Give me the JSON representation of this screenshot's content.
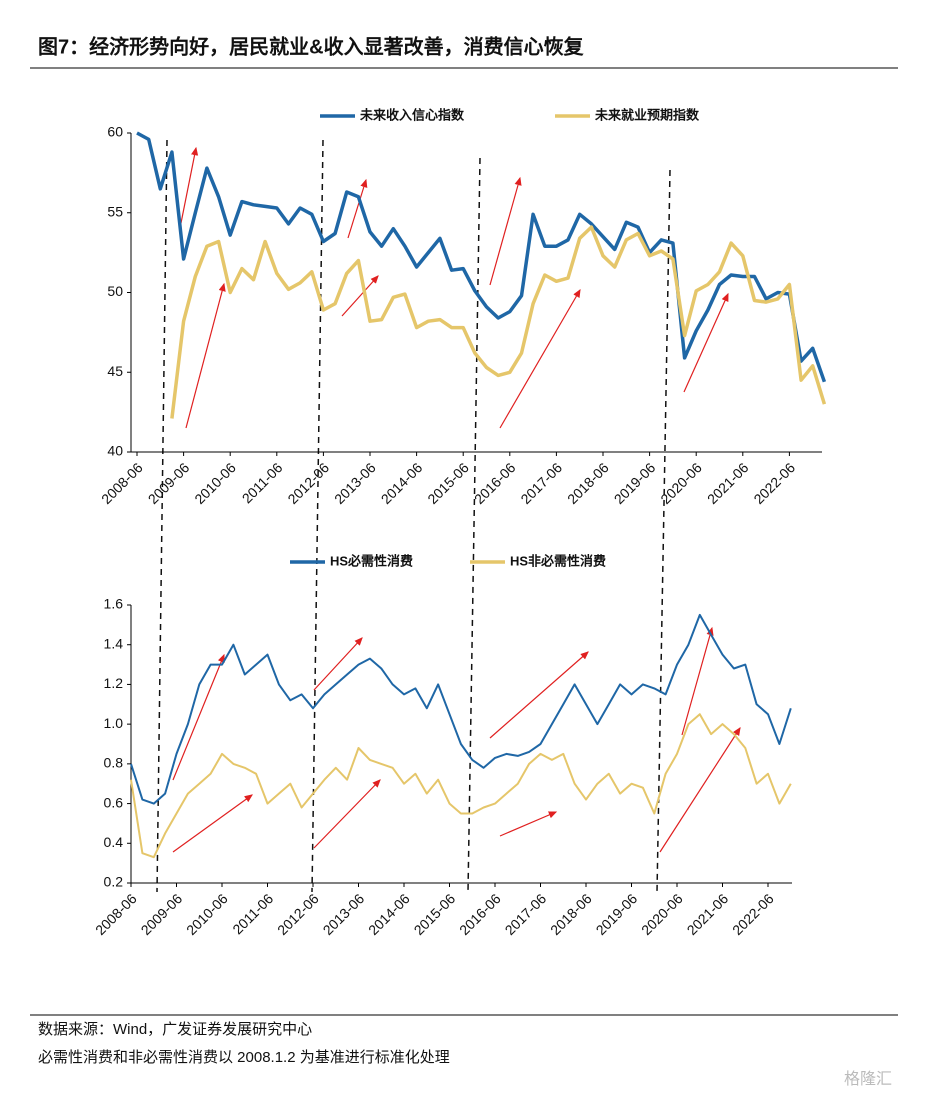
{
  "title": "图7：经济形势向好，居民就业&收入显著改善，消费信心恢复",
  "chart_data": [
    {
      "type": "line",
      "legend": "top",
      "categories": [
        "2008-06",
        null,
        null,
        null,
        "2009-06",
        null,
        null,
        null,
        "2010-06",
        null,
        null,
        null,
        "2011-06",
        null,
        null,
        null,
        "2012-06",
        null,
        null,
        null,
        "2013-06",
        null,
        null,
        null,
        "2014-06",
        null,
        null,
        null,
        "2015-06",
        null,
        null,
        null,
        "2016-06",
        null,
        null,
        null,
        "2017-06",
        null,
        null,
        null,
        "2018-06",
        null,
        null,
        null,
        "2019-06",
        null,
        null,
        null,
        "2020-06",
        null,
        null,
        null,
        "2021-06",
        null,
        null,
        null,
        "2022-06",
        null,
        null,
        null
      ],
      "series": [
        {
          "name": "未来收入信心指数",
          "color": "#1f67a6",
          "values": [
            60,
            59.6,
            56.5,
            58.8,
            52.1,
            55,
            57.8,
            56,
            53.6,
            55.7,
            55.5,
            55.4,
            55.3,
            54.3,
            55.3,
            54.9,
            53.2,
            53.7,
            56.3,
            56,
            53.8,
            52.9,
            54,
            52.9,
            51.6,
            52.5,
            53.4,
            51.4,
            51.5,
            50.1,
            49.1,
            48.4,
            48.8,
            49.8,
            54.9,
            52.9,
            52.9,
            53.3,
            54.9,
            54.3,
            53.5,
            52.7,
            54.4,
            54.1,
            52.5,
            53.3,
            53.1,
            45.9,
            47.6,
            48.9,
            50.5,
            51.1,
            51,
            51,
            49.6,
            50,
            49.9,
            45.7,
            46.5,
            44.4
          ]
        },
        {
          "name": "未来就业预期指数",
          "color": "#e5c66a",
          "values": [
            null,
            null,
            null,
            42.1,
            48.2,
            51,
            52.9,
            53.2,
            50,
            51.5,
            50.8,
            53.2,
            51.2,
            50.2,
            50.6,
            51.3,
            48.9,
            49.3,
            51.2,
            52,
            48.2,
            48.3,
            49.7,
            49.9,
            47.8,
            48.2,
            48.3,
            47.8,
            47.8,
            46.2,
            45.3,
            44.8,
            45,
            46.2,
            49.3,
            51.1,
            50.7,
            50.9,
            53.4,
            54.1,
            52.3,
            51.6,
            53.3,
            53.7,
            52.3,
            52.6,
            52.1,
            47.3,
            50.1,
            50.5,
            51.3,
            53.1,
            52.3,
            49.5,
            49.4,
            49.6,
            50.5,
            44.5,
            45.4,
            43
          ]
        }
      ],
      "ylim": [
        40,
        60
      ],
      "yticks": [
        40,
        45,
        50,
        55,
        60
      ]
    },
    {
      "type": "line",
      "legend": "top",
      "categories": [
        "2008-06",
        null,
        null,
        null,
        "2009-06",
        null,
        null,
        null,
        "2010-06",
        null,
        null,
        null,
        "2011-06",
        null,
        null,
        null,
        "2012-06",
        null,
        null,
        null,
        "2013-06",
        null,
        null,
        null,
        "2014-06",
        null,
        null,
        null,
        "2015-06",
        null,
        null,
        null,
        "2016-06",
        null,
        null,
        null,
        "2017-06",
        null,
        null,
        null,
        "2018-06",
        null,
        null,
        null,
        "2019-06",
        null,
        null,
        null,
        "2020-06",
        null,
        null,
        null,
        "2021-06",
        null,
        null,
        null,
        "2022-06",
        null,
        null
      ],
      "series": [
        {
          "name": "HS必需性消费",
          "color": "#1f67a6",
          "values": [
            0.8,
            0.62,
            0.6,
            0.65,
            0.85,
            1.0,
            1.2,
            1.3,
            1.3,
            1.4,
            1.25,
            1.3,
            1.35,
            1.2,
            1.12,
            1.15,
            1.08,
            1.15,
            1.2,
            1.25,
            1.3,
            1.33,
            1.28,
            1.2,
            1.15,
            1.18,
            1.08,
            1.2,
            1.05,
            0.9,
            0.82,
            0.78,
            0.83,
            0.85,
            0.84,
            0.86,
            0.9,
            1.0,
            1.1,
            1.2,
            1.1,
            1.0,
            1.1,
            1.2,
            1.15,
            1.2,
            1.18,
            1.15,
            1.3,
            1.4,
            1.55,
            1.45,
            1.35,
            1.28,
            1.3,
            1.1,
            1.05,
            0.9,
            1.08
          ]
        },
        {
          "name": "HS非必需性消费",
          "color": "#e5c66a",
          "values": [
            0.72,
            0.35,
            0.33,
            0.45,
            0.55,
            0.65,
            0.7,
            0.75,
            0.85,
            0.8,
            0.78,
            0.75,
            0.6,
            0.65,
            0.7,
            0.58,
            0.65,
            0.72,
            0.78,
            0.72,
            0.88,
            0.82,
            0.8,
            0.78,
            0.7,
            0.75,
            0.65,
            0.72,
            0.6,
            0.55,
            0.55,
            0.58,
            0.6,
            0.65,
            0.7,
            0.8,
            0.85,
            0.82,
            0.85,
            0.7,
            0.62,
            0.7,
            0.75,
            0.65,
            0.7,
            0.68,
            0.55,
            0.75,
            0.85,
            1.0,
            1.05,
            0.95,
            1.0,
            0.95,
            0.88,
            0.7,
            0.75,
            0.6,
            0.7
          ]
        }
      ],
      "ylim": [
        0.2,
        1.6
      ],
      "yticks": [
        0.2,
        0.4,
        0.6,
        0.8,
        {
          "value": 1,
          "label": "1.0"
        },
        1.2,
        1.4,
        1.6
      ]
    }
  ],
  "notes": [
    "数据来源：Wind，广发证券发展研究中心",
    "必需性消费和非必需性消费以 2008.1.2 为基准进行标准化处理"
  ],
  "watermark": "格隆汇"
}
